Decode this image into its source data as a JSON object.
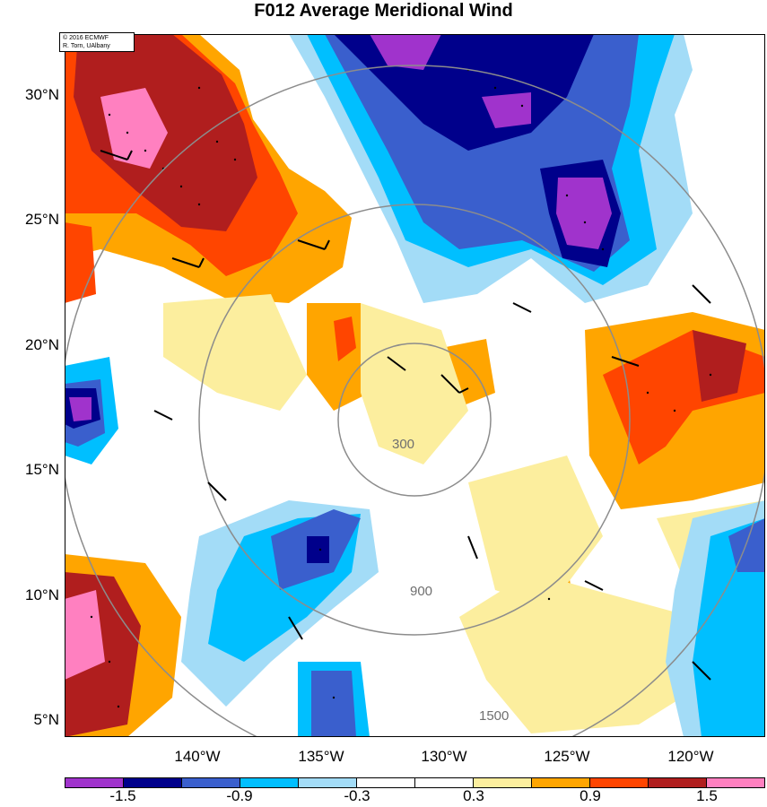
{
  "title": "F012 Average Meridional Wind",
  "copyright": {
    "line1": "© 2016 ECMWF",
    "line2": "R. Torn, UAlbany"
  },
  "map": {
    "lat_labels": [
      "30°N",
      "25°N",
      "20°N",
      "15°N",
      "10°N",
      "5°N"
    ],
    "lon_labels": [
      "140°W",
      "135°W",
      "130°W",
      "125°W",
      "120°W"
    ],
    "range_ring_labels": [
      "300",
      "900",
      "1500"
    ],
    "stippling": "regions with filled dots",
    "wind_barbs": "black barbs over whole domain"
  },
  "colorbar": {
    "colors": [
      "#a033cc",
      "#00008b",
      "#3a5fcd",
      "#00bfff",
      "#a3dcf7",
      "#ffffff",
      "#ffffff",
      "#fcee9e",
      "#ffa500",
      "#ff4500",
      "#b01e1e",
      "#ff80c0"
    ],
    "labels": [
      "-1.5",
      "-0.9",
      "-0.3",
      "0.3",
      "0.9",
      "1.5"
    ]
  }
}
